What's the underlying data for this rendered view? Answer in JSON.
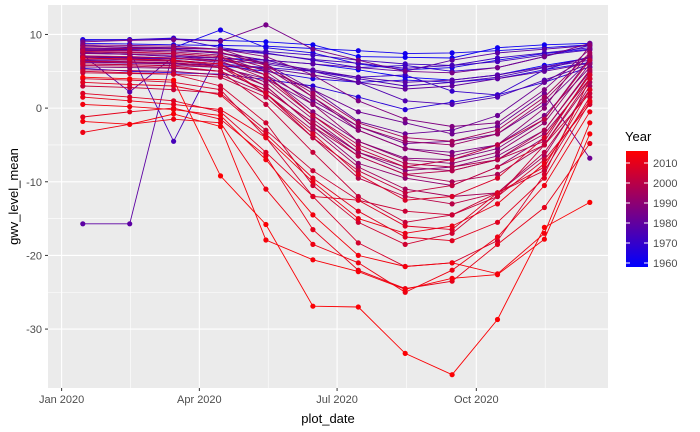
{
  "chart_data": {
    "type": "line",
    "xlabel": "plot_date",
    "ylabel": "gwv_level_mean",
    "x_ticks": [
      "Jan 2020",
      "Apr 2020",
      "Jul 2020",
      "Oct 2020"
    ],
    "x_tick_dates": [
      "2020-01-01",
      "2020-04-01",
      "2020-07-01",
      "2020-10-01"
    ],
    "xlim": [
      "2019-12-23",
      "2020-12-27"
    ],
    "y_ticks": [
      10,
      0,
      -10,
      -20,
      -30
    ],
    "ylim": [
      -38,
      14
    ],
    "grid": true,
    "panel_background": "#ebebeb",
    "gridline_color": "#ffffff",
    "legend": {
      "title": "Year",
      "position": "right",
      "labels": [
        "2010",
        "2000",
        "1990",
        "1980",
        "1970",
        "1960"
      ],
      "values": [
        2010,
        2000,
        1990,
        1980,
        1970,
        1960
      ],
      "range": [
        1958,
        2016
      ],
      "color_low": "#0000ff",
      "color_high": "#ff0000"
    },
    "x_dates": [
      "2020-01-15",
      "2020-02-15",
      "2020-03-15",
      "2020-04-15",
      "2020-05-15",
      "2020-06-15",
      "2020-07-15",
      "2020-08-15",
      "2020-09-15",
      "2020-10-15",
      "2020-11-15",
      "2020-12-15"
    ],
    "series": [
      {
        "year": 1960,
        "values": [
          7.5,
          7.3,
          7.0,
          6.8,
          6.5,
          6.0,
          5.2,
          4.2,
          3.8,
          4.5,
          5.8,
          6.8
        ]
      },
      {
        "year": 1962,
        "values": [
          8.8,
          8.7,
          8.6,
          8.5,
          8.4,
          8.1,
          7.8,
          7.4,
          7.5,
          7.8,
          8.2,
          8.6
        ]
      },
      {
        "year": 1963,
        "values": [
          8.0,
          8.1,
          8.2,
          10.6,
          8.2,
          7.5,
          6.0,
          5.2,
          5.5,
          6.5,
          7.4,
          8.0
        ]
      },
      {
        "year": 1965,
        "values": [
          6.5,
          6.3,
          6.1,
          5.8,
          5.0,
          4.0,
          3.5,
          3.8,
          3.5,
          4.0,
          5.2,
          6.2
        ]
      },
      {
        "year": 1967,
        "values": [
          5.4,
          5.0,
          4.8,
          4.6,
          3.9,
          3.0,
          1.5,
          -0.2,
          0.8,
          1.8,
          3.5,
          5.6
        ]
      },
      {
        "year": 1969,
        "values": [
          9.2,
          9.3,
          9.5,
          8.2,
          7.5,
          6.5,
          5.5,
          5.8,
          5.0,
          5.5,
          7.0,
          8.5
        ]
      },
      {
        "year": 1970,
        "values": [
          7.0,
          6.8,
          6.5,
          6.0,
          5.5,
          5.0,
          4.2,
          4.5,
          2.3,
          1.8,
          5.2,
          7.0
        ]
      },
      {
        "year": 1972,
        "values": [
          8.1,
          8.0,
          8.1,
          8.0,
          7.7,
          7.2,
          6.5,
          6.0,
          5.8,
          6.8,
          7.5,
          8.2
        ]
      },
      {
        "year": 1974,
        "values": [
          7.8,
          7.8,
          -4.5,
          7.9,
          7.4,
          6.6,
          6.1,
          5.4,
          5.8,
          6.3,
          7.2,
          7.9
        ]
      },
      {
        "year": 1975,
        "values": [
          6.9,
          6.8,
          6.7,
          6.5,
          6.0,
          5.0,
          4.0,
          3.0,
          3.5,
          4.2,
          5.5,
          6.5
        ]
      },
      {
        "year": 1976,
        "values": [
          8.5,
          8.2,
          8.0,
          7.4,
          6.5,
          5.0,
          3.5,
          1.0,
          0.5,
          1.5,
          3.8,
          6.0
        ]
      },
      {
        "year": 1978,
        "values": [
          7.2,
          2.2,
          7.0,
          6.8,
          6.2,
          5.2,
          4.2,
          3.5,
          3.8,
          4.5,
          5.6,
          6.8
        ]
      },
      {
        "year": 1980,
        "values": [
          6.2,
          6.1,
          6.0,
          5.8,
          5.4,
          4.5,
          3.5,
          2.6,
          3.0,
          4.0,
          5.0,
          6.1
        ]
      },
      {
        "year": 1982,
        "values": [
          8.0,
          7.9,
          7.8,
          7.5,
          6.0,
          2.5,
          -1.8,
          -3.5,
          -3.0,
          -1.0,
          3.5,
          7.0
        ]
      },
      {
        "year": 1983,
        "values": [
          7.5,
          7.3,
          7.0,
          6.5,
          5.2,
          2.5,
          -0.5,
          -2.0,
          -3.5,
          -2.5,
          2.0,
          -6.8
        ]
      },
      {
        "year": 1984,
        "values": [
          7.0,
          6.9,
          6.8,
          6.2,
          4.5,
          1.0,
          -2.5,
          -4.8,
          -4.5,
          -3.5,
          0.5,
          6.5
        ]
      },
      {
        "year": 1985,
        "values": [
          9.0,
          9.2,
          9.3,
          9.1,
          11.3,
          8.0,
          6.5,
          5.0,
          4.8,
          5.5,
          7.0,
          8.8
        ]
      },
      {
        "year": 1986,
        "values": [
          6.0,
          5.9,
          5.8,
          5.5,
          4.0,
          0.5,
          -3.0,
          -5.5,
          -6.0,
          -5.0,
          -1.0,
          5.5
        ]
      },
      {
        "year": 1987,
        "values": [
          8.4,
          8.3,
          8.2,
          8.0,
          7.0,
          4.5,
          1.0,
          -1.5,
          -2.5,
          -2.0,
          2.5,
          8.0
        ]
      },
      {
        "year": 1988,
        "values": [
          7.4,
          7.3,
          7.2,
          6.8,
          4.5,
          -0.5,
          -4.5,
          -6.8,
          -7.0,
          -5.5,
          -1.5,
          6.8
        ]
      },
      {
        "year": 1989,
        "values": [
          5.6,
          5.5,
          5.4,
          5.0,
          2.5,
          -2.0,
          -6.0,
          -8.5,
          -8.0,
          -6.5,
          -3.0,
          5.0
        ]
      },
      {
        "year": 1990,
        "values": [
          8.6,
          8.5,
          8.4,
          8.0,
          6.0,
          1.5,
          -3.0,
          -5.5,
          -6.5,
          -5.0,
          0.0,
          8.5
        ]
      },
      {
        "year": 1991,
        "values": [
          6.6,
          6.5,
          6.4,
          6.0,
          3.0,
          -2.5,
          -7.5,
          -9.5,
          -10.5,
          -8.0,
          -4.0,
          4.5
        ]
      },
      {
        "year": 1992,
        "values": [
          7.6,
          7.5,
          7.4,
          7.0,
          5.0,
          0.5,
          -4.5,
          -7.0,
          -7.5,
          -6.0,
          -2.0,
          6.0
        ]
      },
      {
        "year": 1993,
        "values": [
          7.9,
          7.8,
          7.6,
          7.2,
          5.5,
          1.5,
          -2.5,
          -4.5,
          -5.0,
          -3.5,
          1.0,
          7.2
        ]
      },
      {
        "year": 1994,
        "values": [
          6.8,
          6.6,
          6.4,
          5.8,
          3.5,
          -1.5,
          -6.0,
          -8.0,
          -8.5,
          -7.0,
          -3.5,
          4.0
        ]
      },
      {
        "year": 1995,
        "values": [
          8.2,
          8.1,
          8.0,
          7.6,
          5.8,
          2.0,
          -2.0,
          -4.0,
          -4.5,
          -3.0,
          1.5,
          7.5
        ]
      },
      {
        "year": 1996,
        "values": [
          5.2,
          5.1,
          5.0,
          4.5,
          2.0,
          -3.0,
          -8.0,
          -11.0,
          -12.0,
          -11.5,
          -6.5,
          3.0
        ]
      },
      {
        "year": 1997,
        "values": [
          6.3,
          6.2,
          6.0,
          5.5,
          3.0,
          -2.5,
          -6.5,
          -9.0,
          -10.0,
          -9.0,
          -5.0,
          3.5
        ]
      },
      {
        "year": 1998,
        "values": [
          7.1,
          7.0,
          6.8,
          6.4,
          4.0,
          -1.0,
          -5.0,
          -7.5,
          -8.0,
          -7.0,
          -3.0,
          5.2
        ]
      },
      {
        "year": 1999,
        "values": [
          5.8,
          5.7,
          5.5,
          5.0,
          2.5,
          -2.0,
          -6.5,
          -9.0,
          -8.5,
          -7.0,
          -4.5,
          4.8
        ]
      },
      {
        "year": 2000,
        "values": [
          6.4,
          6.3,
          6.2,
          5.6,
          2.0,
          -4.0,
          -9.5,
          -12.0,
          -13.0,
          -11.5,
          -6.0,
          2.5
        ]
      },
      {
        "year": 2001,
        "values": [
          7.7,
          7.6,
          7.4,
          7.0,
          4.5,
          -1.0,
          -5.5,
          -8.0,
          -7.0,
          -5.0,
          -1.5,
          6.5
        ]
      },
      {
        "year": 2002,
        "values": [
          4.8,
          4.7,
          4.6,
          4.2,
          1.5,
          -4.0,
          -8.5,
          -11.5,
          -10.5,
          -8.0,
          -5.0,
          4.0
        ]
      },
      {
        "year": 2003,
        "values": [
          6.0,
          5.9,
          5.7,
          5.0,
          0.5,
          -6.0,
          -12.0,
          -15.5,
          -14.5,
          -12.0,
          -5.0,
          2.0
        ]
      },
      {
        "year": 2004,
        "values": [
          3.0,
          2.8,
          2.5,
          2.0,
          -3.0,
          -8.5,
          -12.5,
          -14.0,
          -14.5,
          -11.5,
          -8.5,
          1.5
        ]
      },
      {
        "year": 2005,
        "values": [
          5.0,
          4.8,
          4.6,
          3.0,
          -2.0,
          -10.5,
          -15.5,
          -18.5,
          -17.0,
          -12.0,
          -7.0,
          0.5
        ]
      },
      {
        "year": 2006,
        "values": [
          4.0,
          3.8,
          3.5,
          2.5,
          -4.0,
          -12.0,
          -18.3,
          -21.5,
          -21.0,
          -18.0,
          -9.0,
          4.0
        ]
      },
      {
        "year": 2007,
        "values": [
          6.8,
          6.7,
          6.5,
          6.0,
          2.0,
          -3.5,
          -9.0,
          -12.5,
          -12.0,
          -9.5,
          -4.0,
          4.5
        ]
      },
      {
        "year": 2008,
        "values": [
          2.0,
          1.5,
          1.0,
          -0.5,
          -6.0,
          -12.0,
          -12.5,
          -16.0,
          -16.5,
          -11.5,
          -8.0,
          2.5
        ]
      },
      {
        "year": 2009,
        "values": [
          3.5,
          3.2,
          3.0,
          1.8,
          -3.5,
          -9.5,
          -14.0,
          -17.5,
          -18.0,
          -15.5,
          -9.5,
          0.8
        ]
      },
      {
        "year": 2010,
        "values": [
          -1.2,
          -0.5,
          0.0,
          -1.5,
          -6.5,
          -16.5,
          -22.0,
          -24.5,
          -23.5,
          -18.5,
          -13.5,
          -4.8
        ]
      },
      {
        "year": 2011,
        "values": [
          1.5,
          1.0,
          0.5,
          -0.2,
          -4.0,
          -10.0,
          -15.0,
          -17.0,
          -16.0,
          -13.0,
          -7.5,
          1.0
        ]
      },
      {
        "year": 2012,
        "values": [
          -3.3,
          -2.2,
          -1.5,
          -2.0,
          -11.0,
          -18.5,
          -21.0,
          -25.0,
          -22.0,
          -17.5,
          -10.5,
          -0.5
        ]
      },
      {
        "year": 2013,
        "values": [
          0.5,
          0.2,
          -0.2,
          -1.0,
          -7.0,
          -14.5,
          -20.0,
          -21.5,
          -21.0,
          -22.5,
          -17.0,
          -2.0
        ]
      },
      {
        "year": 2014,
        "values": [
          -1.8,
          -2.2,
          -0.8,
          -2.5,
          -17.9,
          -20.6,
          -22.2,
          -24.6,
          -23.1,
          -22.6,
          -17.8,
          -3.5
        ]
      },
      {
        "year": 2015,
        "values": [
          4.2,
          4.0,
          3.8,
          -9.2,
          -15.8,
          -26.9,
          -27.0,
          -33.3,
          -36.2,
          -28.7,
          -16.2,
          -12.8
        ]
      },
      {
        "year": 1961,
        "values": [
          9.3,
          9.3,
          9.4,
          9.2,
          9.0,
          8.6,
          7.0,
          6.9,
          6.8,
          8.2,
          8.6,
          8.8
        ]
      },
      {
        "year": 1979,
        "values": [
          -15.7,
          -15.7,
          8.0,
          7.5,
          6.5,
          6.0,
          5.5,
          5.0,
          6.5,
          7.5,
          8.0,
          8.5
        ]
      }
    ]
  }
}
